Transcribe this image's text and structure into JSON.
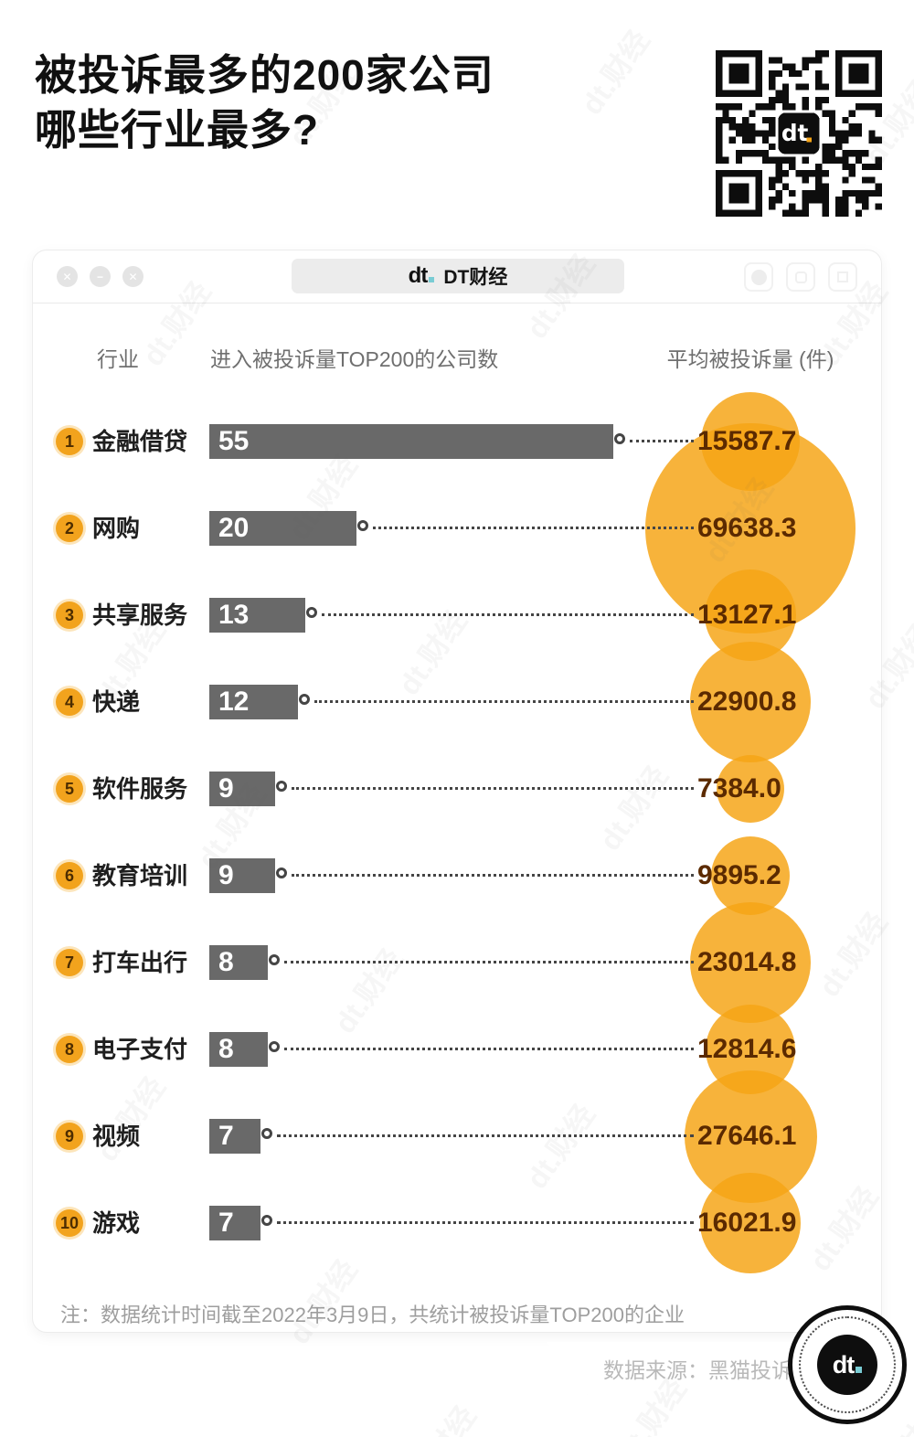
{
  "title": {
    "line1": "被投诉最多的200家公司",
    "line2": "哪些行业最多?"
  },
  "window": {
    "brand": "DT财经",
    "logo_text": "dt",
    "controls_left": [
      "close-icon",
      "minimize-icon",
      "more-icon"
    ],
    "controls_right": [
      "record-icon",
      "rounded-square-icon",
      "square-icon"
    ]
  },
  "columns": {
    "industry": "行业",
    "companies": "进入被投诉量TOP200的公司数",
    "avg": "平均被投诉量 (件)"
  },
  "chart_data": {
    "type": "bar",
    "orientation": "horizontal",
    "title": "被投诉最多的200家公司哪些行业最多?",
    "categories": [
      "金融借贷",
      "网购",
      "共享服务",
      "快递",
      "软件服务",
      "教育培训",
      "打车出行",
      "电子支付",
      "视频",
      "游戏"
    ],
    "ranks": [
      1,
      2,
      3,
      4,
      5,
      6,
      7,
      8,
      9,
      10
    ],
    "series": [
      {
        "name": "进入被投诉量TOP200的公司数",
        "style": "bar",
        "values": [
          55,
          20,
          13,
          12,
          9,
          9,
          8,
          8,
          7,
          7
        ]
      },
      {
        "name": "平均被投诉量 (件)",
        "style": "bubble",
        "values": [
          15587.7,
          69638.3,
          13127.1,
          22900.8,
          7384.0,
          9895.2,
          23014.8,
          12814.6,
          27646.1,
          16021.9
        ],
        "display": [
          "15587.7",
          "69638.3",
          "13127.1",
          "22900.8",
          "7384.0",
          "9895.2",
          "23014.8",
          "12814.6",
          "27646.1",
          "16021.9"
        ]
      }
    ],
    "legend": false,
    "grid": false,
    "bubble_scale": "diameter proportional to sqrt(value)"
  },
  "footer": {
    "note": "注：数据统计时间截至2022年3月9日，共统计被投诉量TOP200的企业",
    "source": "数据来源：黑猫投诉"
  },
  "watermark": {
    "text": "dt.财经"
  },
  "colors": {
    "accent_orange": "#F6A416",
    "badge_orange": "#F2A31D",
    "bar_gray": "#696969",
    "avg_number_brown": "#5B2A00",
    "logo_teal": "#79CCD4",
    "header_gray": "#6F6F6F",
    "note_gray": "#9E9E9E"
  }
}
